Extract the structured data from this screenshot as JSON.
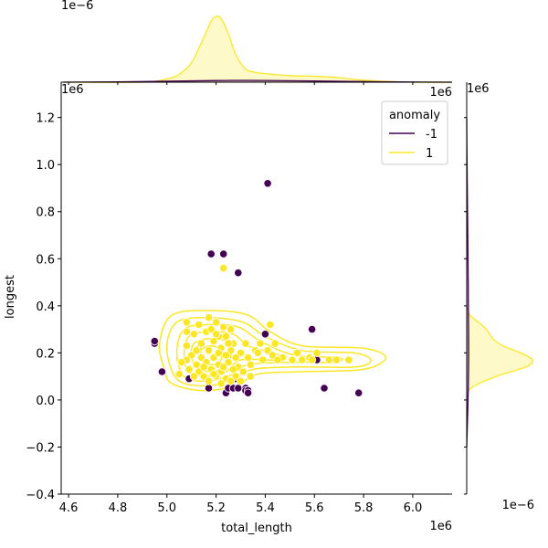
{
  "colors": {
    "normal": "#fde725",
    "anomaly": "#440154",
    "normal_fill": "#fdf3b4",
    "point_edge": "#ffffff"
  },
  "chart_data": {
    "type": "scatter",
    "title": "",
    "xlabel": "total_length",
    "ylabel": "longest",
    "x_offset_label": "1e6",
    "y_offset_label": "1e6",
    "top_marginal_offset_label": "1e−6",
    "right_marginal_offset_label": "1e−6",
    "xlim": [
      4.57,
      6.16
    ],
    "ylim": [
      -0.4,
      1.35
    ],
    "xticks": [
      4.6,
      4.8,
      5.0,
      5.2,
      5.4,
      5.6,
      5.8,
      6.0
    ],
    "yticks": [
      -0.4,
      -0.2,
      0.0,
      0.2,
      0.4,
      0.6,
      0.8,
      1.0,
      1.2
    ],
    "xtick_labels": [
      "4.6",
      "4.8",
      "5.0",
      "5.2",
      "5.4",
      "5.6",
      "5.8",
      "6.0"
    ],
    "ytick_labels": [
      "−0.4",
      "−0.2",
      "0.0",
      "0.2",
      "0.4",
      "0.6",
      "0.8",
      "1.0",
      "1.2"
    ],
    "grid": false,
    "legend": {
      "title": "anomaly",
      "position": "top-right",
      "entries": [
        {
          "label": "-1",
          "color_key": "anomaly"
        },
        {
          "label": "1",
          "color_key": "normal"
        }
      ]
    },
    "series": [
      {
        "name": "-1",
        "color_key": "anomaly",
        "points": [
          [
            5.41,
            0.92
          ],
          [
            5.18,
            0.62
          ],
          [
            5.23,
            0.62
          ],
          [
            5.29,
            0.54
          ],
          [
            5.59,
            0.3
          ],
          [
            5.4,
            0.28
          ],
          [
            4.95,
            0.24
          ],
          [
            4.95,
            0.25
          ],
          [
            4.98,
            0.12
          ],
          [
            5.09,
            0.09
          ],
          [
            5.17,
            0.05
          ],
          [
            5.24,
            0.03
          ],
          [
            5.25,
            0.05
          ],
          [
            5.27,
            0.05
          ],
          [
            5.28,
            0.09
          ],
          [
            5.29,
            0.05
          ],
          [
            5.32,
            0.05
          ],
          [
            5.32,
            0.04
          ],
          [
            5.33,
            0.04
          ],
          [
            5.33,
            0.03
          ],
          [
            5.61,
            0.17
          ],
          [
            5.64,
            0.05
          ],
          [
            5.78,
            0.03
          ]
        ]
      },
      {
        "name": "1",
        "color_key": "normal",
        "points": [
          [
            5.23,
            0.56
          ],
          [
            5.08,
            0.33
          ],
          [
            5.13,
            0.32
          ],
          [
            5.17,
            0.35
          ],
          [
            5.2,
            0.33
          ],
          [
            5.23,
            0.31
          ],
          [
            5.26,
            0.3
          ],
          [
            5.42,
            0.32
          ],
          [
            5.08,
            0.29
          ],
          [
            5.11,
            0.28
          ],
          [
            5.16,
            0.29
          ],
          [
            5.21,
            0.27
          ],
          [
            5.24,
            0.27
          ],
          [
            5.19,
            0.25
          ],
          [
            5.27,
            0.24
          ],
          [
            5.32,
            0.24
          ],
          [
            5.38,
            0.24
          ],
          [
            5.44,
            0.24
          ],
          [
            5.08,
            0.23
          ],
          [
            5.13,
            0.22
          ],
          [
            5.17,
            0.21
          ],
          [
            5.22,
            0.22
          ],
          [
            5.26,
            0.21
          ],
          [
            5.3,
            0.2
          ],
          [
            5.36,
            0.21
          ],
          [
            5.41,
            0.21
          ],
          [
            5.1,
            0.19
          ],
          [
            5.14,
            0.18
          ],
          [
            5.19,
            0.18
          ],
          [
            5.24,
            0.19
          ],
          [
            5.28,
            0.18
          ],
          [
            5.33,
            0.18
          ],
          [
            5.37,
            0.2
          ],
          [
            5.43,
            0.19
          ],
          [
            5.47,
            0.18
          ],
          [
            5.53,
            0.2
          ],
          [
            5.58,
            0.18
          ],
          [
            5.61,
            0.2
          ],
          [
            5.08,
            0.17
          ],
          [
            5.12,
            0.15
          ],
          [
            5.16,
            0.16
          ],
          [
            5.21,
            0.15
          ],
          [
            5.25,
            0.16
          ],
          [
            5.29,
            0.14
          ],
          [
            5.34,
            0.15
          ],
          [
            5.39,
            0.17
          ],
          [
            5.45,
            0.17
          ],
          [
            5.51,
            0.17
          ],
          [
            5.55,
            0.17
          ],
          [
            5.59,
            0.17
          ],
          [
            5.66,
            0.17
          ],
          [
            5.69,
            0.17
          ],
          [
            5.74,
            0.17
          ],
          [
            5.09,
            0.13
          ],
          [
            5.13,
            0.12
          ],
          [
            5.18,
            0.13
          ],
          [
            5.22,
            0.12
          ],
          [
            5.27,
            0.13
          ],
          [
            5.31,
            0.12
          ],
          [
            5.11,
            0.1
          ],
          [
            5.15,
            0.1
          ],
          [
            5.2,
            0.1
          ],
          [
            5.24,
            0.09
          ],
          [
            5.28,
            0.1
          ],
          [
            5.17,
            0.08
          ],
          [
            5.22,
            0.07
          ],
          [
            5.26,
            0.08
          ],
          [
            5.3,
            0.08
          ],
          [
            5.34,
            0.1
          ],
          [
            5.06,
            0.16
          ],
          [
            5.05,
            0.11
          ],
          [
            5.14,
            0.24
          ],
          [
            5.18,
            0.3
          ],
          [
            5.15,
            0.14
          ],
          [
            5.21,
            0.2
          ],
          [
            5.19,
            0.11
          ],
          [
            5.23,
            0.14
          ],
          [
            5.12,
            0.21
          ],
          [
            5.25,
            0.24
          ],
          [
            5.2,
            0.28
          ]
        ]
      }
    ],
    "kde_contours": {
      "color_key": "normal",
      "levels": [
        [
          [
            5.02,
            0.07
          ],
          [
            5.14,
            0.04
          ],
          [
            5.28,
            0.06
          ],
          [
            5.37,
            0.11
          ],
          [
            5.55,
            0.12
          ],
          [
            5.8,
            0.13
          ],
          [
            5.89,
            0.18
          ],
          [
            5.8,
            0.22
          ],
          [
            5.55,
            0.23
          ],
          [
            5.42,
            0.29
          ],
          [
            5.33,
            0.36
          ],
          [
            5.18,
            0.38
          ],
          [
            5.02,
            0.36
          ],
          [
            4.97,
            0.24
          ],
          [
            4.99,
            0.13
          ]
        ],
        [
          [
            5.04,
            0.09
          ],
          [
            5.14,
            0.06
          ],
          [
            5.26,
            0.08
          ],
          [
            5.35,
            0.13
          ],
          [
            5.55,
            0.14
          ],
          [
            5.77,
            0.14
          ],
          [
            5.83,
            0.17
          ],
          [
            5.76,
            0.2
          ],
          [
            5.55,
            0.21
          ],
          [
            5.4,
            0.27
          ],
          [
            5.31,
            0.33
          ],
          [
            5.17,
            0.35
          ],
          [
            5.04,
            0.33
          ],
          [
            5.0,
            0.22
          ]
        ],
        [
          [
            5.07,
            0.1
          ],
          [
            5.15,
            0.08
          ],
          [
            5.25,
            0.1
          ],
          [
            5.33,
            0.15
          ],
          [
            5.52,
            0.16
          ],
          [
            5.68,
            0.16
          ],
          [
            5.7,
            0.18
          ],
          [
            5.52,
            0.19
          ],
          [
            5.38,
            0.25
          ],
          [
            5.29,
            0.31
          ],
          [
            5.17,
            0.32
          ],
          [
            5.07,
            0.3
          ],
          [
            5.04,
            0.2
          ]
        ],
        [
          [
            5.09,
            0.12
          ],
          [
            5.16,
            0.1
          ],
          [
            5.24,
            0.12
          ],
          [
            5.3,
            0.17
          ],
          [
            5.45,
            0.17
          ],
          [
            5.46,
            0.19
          ],
          [
            5.33,
            0.23
          ],
          [
            5.27,
            0.28
          ],
          [
            5.17,
            0.29
          ],
          [
            5.09,
            0.27
          ],
          [
            5.07,
            0.19
          ]
        ],
        [
          [
            5.12,
            0.14
          ],
          [
            5.18,
            0.12
          ],
          [
            5.23,
            0.14
          ],
          [
            5.26,
            0.19
          ],
          [
            5.24,
            0.25
          ],
          [
            5.17,
            0.26
          ],
          [
            5.11,
            0.24
          ],
          [
            5.1,
            0.19
          ]
        ],
        [
          [
            5.15,
            0.16
          ],
          [
            5.19,
            0.15
          ],
          [
            5.22,
            0.17
          ],
          [
            5.22,
            0.21
          ],
          [
            5.18,
            0.23
          ],
          [
            5.14,
            0.21
          ]
        ]
      ]
    },
    "marginal_x": {
      "series": [
        {
          "name": "1",
          "color_key": "normal",
          "filled": true,
          "x": [
            4.58,
            4.9,
            5.0,
            5.05,
            5.1,
            5.15,
            5.18,
            5.2,
            5.22,
            5.25,
            5.28,
            5.32,
            5.36,
            5.4,
            5.5,
            5.6,
            5.7,
            5.8,
            6.0,
            6.16
          ],
          "density": [
            0.0,
            0.0,
            0.05,
            0.12,
            0.3,
            0.68,
            0.93,
            1.0,
            0.97,
            0.74,
            0.42,
            0.2,
            0.15,
            0.13,
            0.1,
            0.09,
            0.07,
            0.03,
            0.0,
            0.0
          ]
        },
        {
          "name": "-1",
          "color_key": "anomaly",
          "filled": true,
          "x": [
            4.58,
            4.8,
            5.0,
            5.2,
            5.3,
            5.4,
            5.6,
            5.8,
            6.0,
            6.16
          ],
          "density": [
            0.0,
            0.005,
            0.015,
            0.025,
            0.028,
            0.026,
            0.018,
            0.01,
            0.003,
            0.0
          ]
        }
      ]
    },
    "marginal_y": {
      "series": [
        {
          "name": "1",
          "color_key": "normal",
          "filled": true,
          "y": [
            -0.05,
            0.03,
            0.06,
            0.1,
            0.14,
            0.17,
            0.2,
            0.23,
            0.26,
            0.3,
            0.33,
            0.36,
            0.4
          ],
          "density": [
            0.0,
            0.02,
            0.12,
            0.45,
            0.9,
            1.0,
            0.82,
            0.55,
            0.4,
            0.3,
            0.18,
            0.05,
            0.0
          ]
        },
        {
          "name": "-1",
          "color_key": "anomaly",
          "filled": true,
          "y": [
            -0.2,
            0.0,
            0.2,
            0.4,
            0.6,
            0.8,
            1.0,
            1.2
          ],
          "density": [
            0.0,
            0.02,
            0.03,
            0.025,
            0.02,
            0.012,
            0.005,
            0.0
          ]
        }
      ]
    }
  }
}
